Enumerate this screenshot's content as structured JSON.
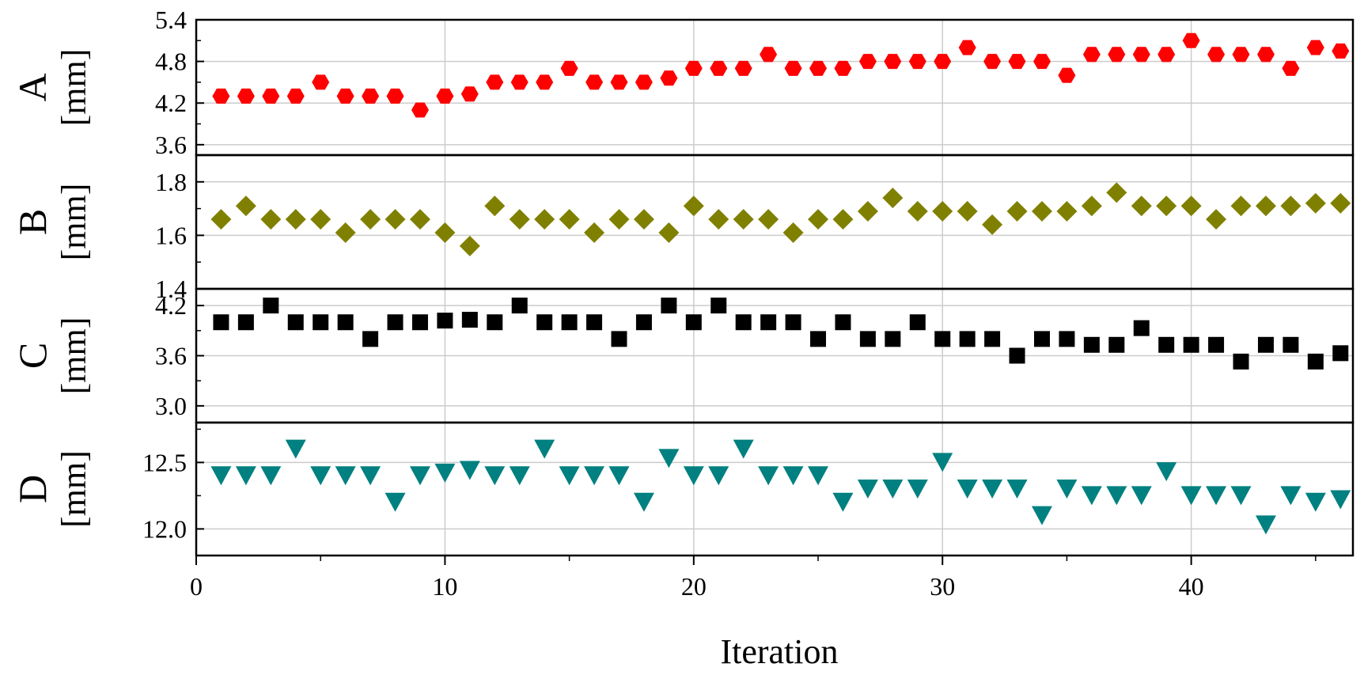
{
  "chart_data": {
    "type": "scatter",
    "xlabel": "Iteration",
    "x_ticks": [
      "0",
      "10",
      "20",
      "30",
      "40"
    ],
    "xlim": [
      0,
      46.5
    ],
    "x": [
      1,
      2,
      3,
      4,
      5,
      6,
      7,
      8,
      9,
      10,
      11,
      12,
      13,
      14,
      15,
      16,
      17,
      18,
      19,
      20,
      21,
      22,
      23,
      24,
      25,
      26,
      27,
      28,
      29,
      30,
      31,
      32,
      33,
      34,
      35,
      36,
      37,
      38,
      39,
      40,
      41,
      42,
      43,
      44,
      45,
      46
    ],
    "grid": true,
    "panels": [
      {
        "name": "A",
        "unit": "[mm]",
        "marker": "hexagon",
        "color": "#ff0000",
        "ylim": [
          3.45,
          5.4
        ],
        "y_ticks": [
          "3.6",
          "4.2",
          "4.8",
          "5.4"
        ],
        "values": [
          4.3,
          4.3,
          4.3,
          4.3,
          4.5,
          4.3,
          4.3,
          4.3,
          4.1,
          4.3,
          4.33,
          4.5,
          4.5,
          4.5,
          4.7,
          4.5,
          4.5,
          4.5,
          4.56,
          4.7,
          4.7,
          4.7,
          4.9,
          4.7,
          4.7,
          4.7,
          4.8,
          4.8,
          4.8,
          4.8,
          5.0,
          4.8,
          4.8,
          4.8,
          4.6,
          4.9,
          4.9,
          4.9,
          4.9,
          5.1,
          4.9,
          4.9,
          4.9,
          4.7,
          5.0,
          4.95
        ]
      },
      {
        "name": "B",
        "unit": "[mm]",
        "marker": "diamond",
        "color": "#808000",
        "ylim": [
          1.4,
          1.9
        ],
        "y_ticks": [
          "1.4",
          "1.6",
          "1.8"
        ],
        "values": [
          1.66,
          1.71,
          1.66,
          1.66,
          1.66,
          1.61,
          1.66,
          1.66,
          1.66,
          1.61,
          1.56,
          1.71,
          1.66,
          1.66,
          1.66,
          1.61,
          1.66,
          1.66,
          1.61,
          1.71,
          1.66,
          1.66,
          1.66,
          1.61,
          1.66,
          1.66,
          1.69,
          1.74,
          1.69,
          1.69,
          1.69,
          1.64,
          1.69,
          1.69,
          1.69,
          1.71,
          1.76,
          1.71,
          1.71,
          1.71,
          1.66,
          1.71,
          1.71,
          1.71,
          1.72,
          1.72
        ]
      },
      {
        "name": "C",
        "unit": "[mm]",
        "marker": "square",
        "color": "#000000",
        "ylim": [
          2.8,
          4.4
        ],
        "y_ticks": [
          "3.0",
          "3.6",
          "4.2"
        ],
        "values": [
          4.0,
          4.0,
          4.2,
          4.0,
          4.0,
          4.0,
          3.8,
          4.0,
          4.0,
          4.02,
          4.03,
          4.0,
          4.2,
          4.0,
          4.0,
          4.0,
          3.8,
          4.0,
          4.2,
          4.0,
          4.2,
          4.0,
          4.0,
          4.0,
          3.8,
          4.0,
          3.8,
          3.8,
          4.0,
          3.8,
          3.8,
          3.8,
          3.6,
          3.8,
          3.8,
          3.73,
          3.73,
          3.93,
          3.73,
          3.73,
          3.73,
          3.53,
          3.73,
          3.73,
          3.53,
          3.63
        ]
      },
      {
        "name": "D",
        "unit": "[mm]",
        "marker": "triangle-down",
        "color": "#008080",
        "ylim": [
          11.8,
          12.8
        ],
        "y_ticks": [
          "12.0",
          "12.5"
        ],
        "values": [
          12.4,
          12.4,
          12.4,
          12.6,
          12.4,
          12.4,
          12.4,
          12.2,
          12.4,
          12.42,
          12.44,
          12.4,
          12.4,
          12.6,
          12.4,
          12.4,
          12.4,
          12.2,
          12.53,
          12.4,
          12.4,
          12.6,
          12.4,
          12.4,
          12.4,
          12.2,
          12.3,
          12.3,
          12.3,
          12.5,
          12.3,
          12.3,
          12.3,
          12.1,
          12.3,
          12.25,
          12.25,
          12.25,
          12.43,
          12.25,
          12.25,
          12.25,
          12.03,
          12.25,
          12.2,
          12.22
        ]
      }
    ]
  }
}
